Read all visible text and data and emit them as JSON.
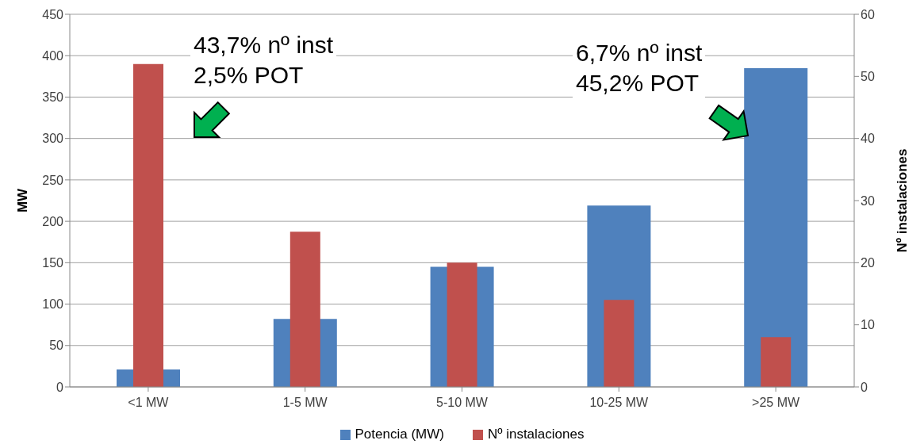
{
  "chart_data": {
    "type": "bar",
    "categories": [
      "<1 MW",
      "1-5 MW",
      "5-10 MW",
      "10-25 MW",
      ">25 MW"
    ],
    "series": [
      {
        "name": "Potencia (MW)",
        "color": "#4f81bd",
        "values": [
          21,
          82,
          145,
          219,
          385
        ]
      },
      {
        "name": "Nº instalaciones",
        "color": "#c0504d",
        "values": [
          52,
          25,
          20,
          14,
          8
        ],
        "axis": "y2"
      }
    ],
    "ylabel": "MW",
    "y2label": "Nº instalaciones",
    "ylim": [
      0,
      450
    ],
    "yticks": [
      0,
      50,
      100,
      150,
      200,
      250,
      300,
      350,
      400,
      450
    ],
    "y2lim": [
      0,
      60
    ],
    "y2ticks": [
      0,
      10,
      20,
      30,
      40,
      50,
      60
    ],
    "annotations": [
      "43,7% nº inst\n2,5% POT",
      "6,7% nº inst\n45,2% POT"
    ],
    "grid": "y",
    "legend": "bottom"
  }
}
